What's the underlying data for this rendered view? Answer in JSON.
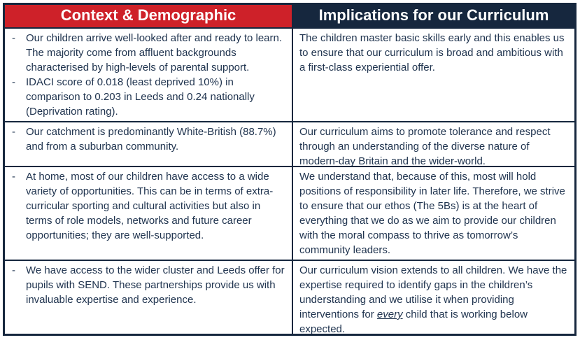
{
  "colors": {
    "header_red": "#CE2129",
    "header_navy": "#16273E",
    "border_navy": "#16273E",
    "body_text": "#20344F"
  },
  "bullet_char": "-",
  "table": {
    "headers": {
      "context": "Context & Demographic",
      "implications": "Implications for our Curriculum"
    },
    "rows": [
      {
        "context_items": [
          "Our children arrive well-looked after and ready to learn. The majority come from affluent backgrounds characterised by high-levels of parental support.",
          "IDACI score of 0.018 (least deprived 10%) in comparison to 0.203 in Leeds and 0.24 nationally (Deprivation rating)."
        ],
        "implication": "The children master basic skills early and this enables us to ensure that our curriculum is broad and ambitious with a first-class experiential offer."
      },
      {
        "context_items": [
          "Our catchment is predominantly White-British (88.7%) and from a suburban community."
        ],
        "implication": "Our curriculum aims to promote tolerance and respect through an understanding of the diverse nature of modern-day Britain and the wider-world."
      },
      {
        "context_items": [
          "At home, most of our children have access to a wide variety of opportunities. This can be in terms of extra-curricular sporting and cultural activities but also in terms of role models, networks and future career opportunities; they are well-supported."
        ],
        "implication": "We understand that, because of this, most will hold positions of responsibility in later life. Therefore, we strive to ensure that our ethos (The 5Bs) is at the heart of everything that we do as we aim to provide our children with the moral compass to thrive as tomorrow’s community leaders."
      },
      {
        "context_items": [
          "We have access to the wider cluster and Leeds offer for pupils with SEND. These partnerships provide us with invaluable expertise and experience."
        ],
        "implication_parts": {
          "before": "Our curriculum vision extends to all children. We have the expertise required to identify gaps in the children’s understanding and we utilise it when providing interventions for ",
          "emphasis": "every",
          "after": " child that is working below expected."
        }
      }
    ]
  }
}
